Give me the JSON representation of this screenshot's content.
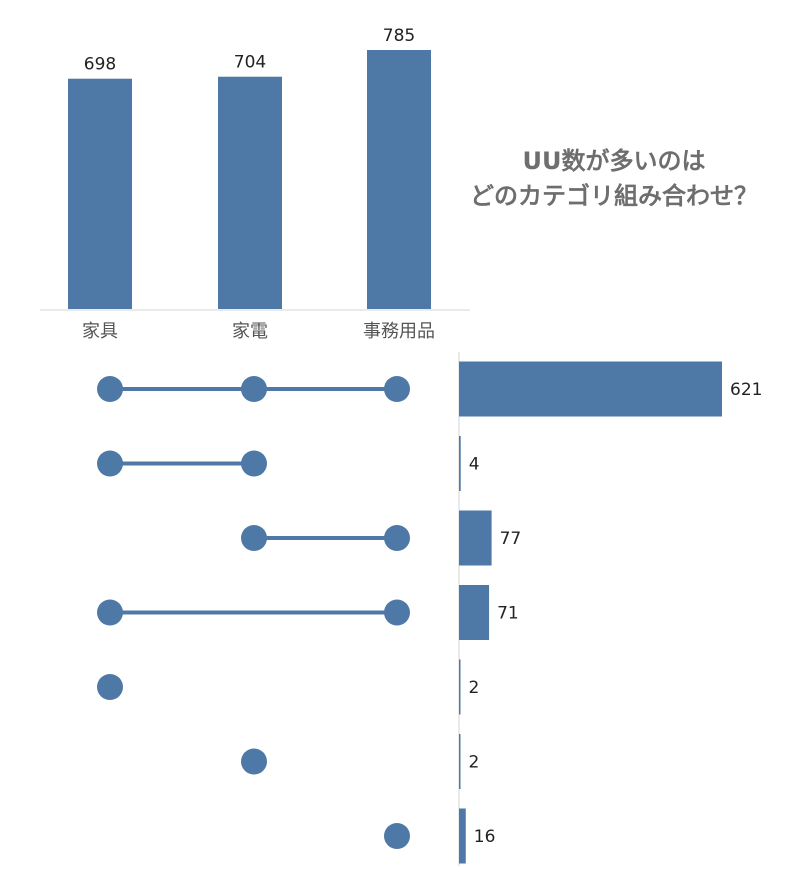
{
  "title_lines": [
    "UU数が多いのは",
    "どのカテゴリ組み合わせ？"
  ],
  "colors": {
    "bar": "#4e79a7",
    "axis": "#d4d4d4"
  },
  "chart_data": [
    {
      "type": "bar",
      "categories": [
        "家具",
        "家電",
        "事務用品"
      ],
      "values": [
        698,
        704,
        785
      ],
      "ylim": [
        0,
        785
      ],
      "grid": false
    },
    {
      "type": "bar",
      "orientation": "horizontal",
      "sets": [
        "家具",
        "家電",
        "事務用品"
      ],
      "combinations": [
        {
          "members": [
            0,
            1,
            2
          ],
          "value": 621
        },
        {
          "members": [
            0,
            1
          ],
          "value": 4
        },
        {
          "members": [
            1,
            2
          ],
          "value": 77
        },
        {
          "members": [
            0,
            2
          ],
          "value": 71
        },
        {
          "members": [
            0
          ],
          "value": 2
        },
        {
          "members": [
            1
          ],
          "value": 2
        },
        {
          "members": [
            2
          ],
          "value": 16
        }
      ],
      "xlim": [
        0,
        621
      ],
      "grid": false
    }
  ]
}
